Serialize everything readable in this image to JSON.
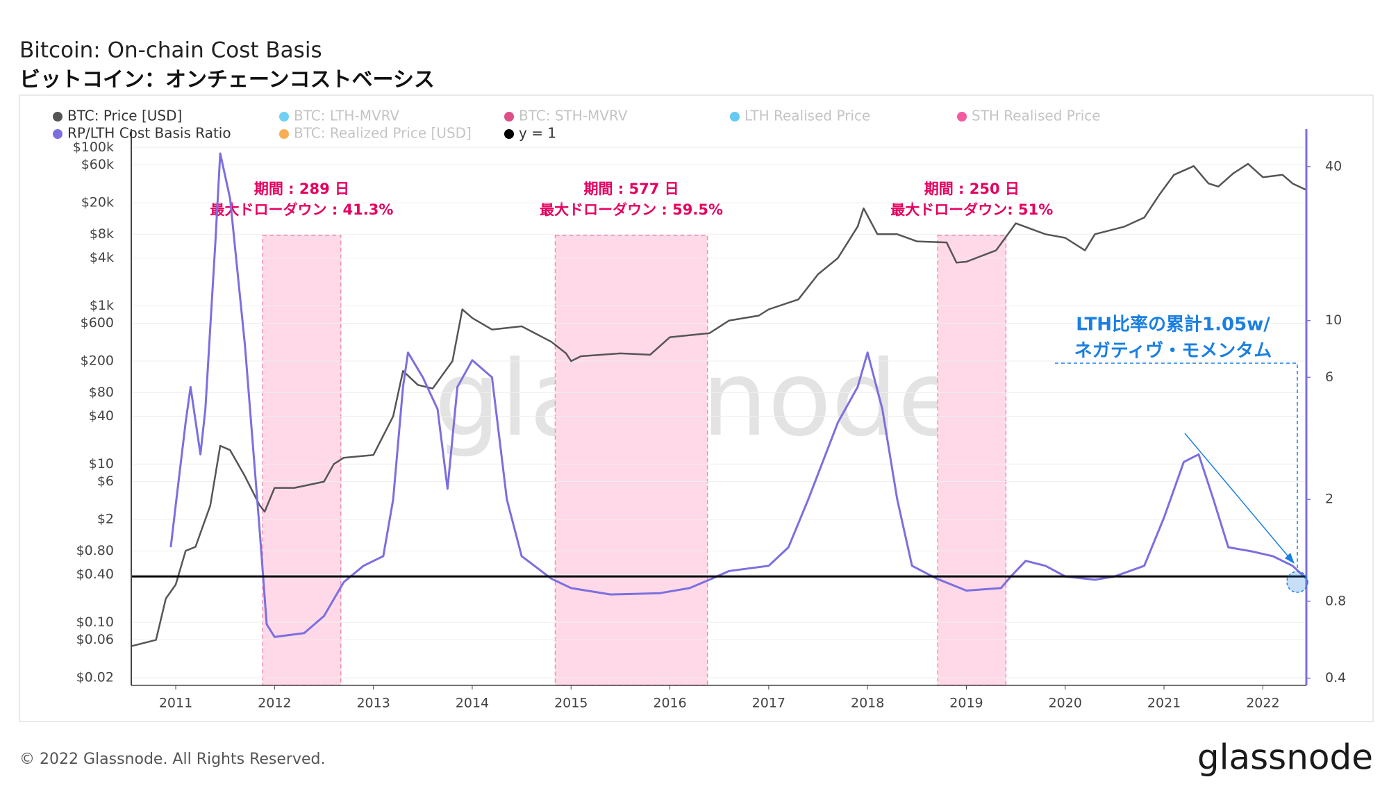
{
  "chart_data": {
    "type": "line",
    "title": "Bitcoin: On-chain Cost Basis",
    "subtitle": "ビットコイン：オンチェーンコストベーシス",
    "footer": "© 2022 Glassnode. All Rights Reserved.",
    "logo": "glassnode",
    "watermark": "glassnode",
    "xlim": [
      2010.55,
      2022.44
    ],
    "xticks": [
      2011,
      2012,
      2013,
      2014,
      2015,
      2016,
      2017,
      2018,
      2019,
      2020,
      2021,
      2022
    ],
    "ylog": true,
    "ylim": [
      0.016,
      170000
    ],
    "yticks": [
      {
        "value": 100000,
        "label": "$100k"
      },
      {
        "value": 60000,
        "label": "$60k"
      },
      {
        "value": 20000,
        "label": "$20k"
      },
      {
        "value": 8000,
        "label": "$8k"
      },
      {
        "value": 4000,
        "label": "$4k"
      },
      {
        "value": 1000,
        "label": "$1k"
      },
      {
        "value": 600,
        "label": "$600"
      },
      {
        "value": 200,
        "label": "$200"
      },
      {
        "value": 80,
        "label": "$80"
      },
      {
        "value": 40,
        "label": "$40"
      },
      {
        "value": 10,
        "label": "$10"
      },
      {
        "value": 6,
        "label": "$6"
      },
      {
        "value": 2,
        "label": "$2"
      },
      {
        "value": 0.8,
        "label": "$0.80"
      },
      {
        "value": 0.4,
        "label": "$0.40"
      },
      {
        "value": 0.1,
        "label": "$0.10"
      },
      {
        "value": 0.06,
        "label": "$0.06"
      },
      {
        "value": 0.02,
        "label": "$0.02"
      }
    ],
    "y2log": true,
    "y2lim": [
      0.375,
      56
    ],
    "y2ticks": [
      0.4,
      0.8,
      2,
      6,
      10,
      40
    ],
    "grid": true,
    "series": [
      {
        "name": "BTC: Price [USD]",
        "color": "#555555",
        "enabled": true,
        "axis": "y",
        "x": [
          2010.55,
          2010.8,
          2010.9,
          2011.0,
          2011.1,
          2011.2,
          2011.35,
          2011.45,
          2011.55,
          2011.7,
          2011.85,
          2011.9,
          2012.0,
          2012.2,
          2012.5,
          2012.6,
          2012.7,
          2013.0,
          2013.2,
          2013.3,
          2013.45,
          2013.6,
          2013.8,
          2013.9,
          2014.0,
          2014.2,
          2014.5,
          2014.8,
          2014.95,
          2015.0,
          2015.1,
          2015.5,
          2015.8,
          2016.0,
          2016.4,
          2016.6,
          2016.9,
          2017.0,
          2017.3,
          2017.5,
          2017.7,
          2017.9,
          2017.96,
          2018.1,
          2018.3,
          2018.5,
          2018.8,
          2018.9,
          2019.0,
          2019.3,
          2019.45,
          2019.5,
          2019.8,
          2020.0,
          2020.2,
          2020.3,
          2020.6,
          2020.8,
          2020.95,
          2021.1,
          2021.3,
          2021.45,
          2021.55,
          2021.7,
          2021.85,
          2022.0,
          2022.2,
          2022.3,
          2022.44
        ],
        "values": [
          0.05,
          0.06,
          0.2,
          0.3,
          0.8,
          0.9,
          3,
          17,
          15,
          7,
          3,
          2.5,
          5,
          5,
          6,
          10,
          12,
          13,
          40,
          150,
          100,
          90,
          200,
          900,
          700,
          500,
          550,
          350,
          250,
          200,
          230,
          250,
          240,
          400,
          450,
          650,
          750,
          900,
          1200,
          2500,
          4000,
          10000,
          17000,
          8000,
          8000,
          6500,
          6300,
          3500,
          3600,
          5000,
          9000,
          11000,
          8000,
          7200,
          5000,
          8000,
          10000,
          13000,
          25000,
          45000,
          58000,
          35000,
          32000,
          47000,
          62000,
          42000,
          45000,
          35000,
          29000
        ]
      },
      {
        "name": "BTC: LTH-MVRV",
        "color": "#3cc0f0",
        "enabled": false
      },
      {
        "name": "BTC: STH-MVRV",
        "color": "#d0155f",
        "enabled": false
      },
      {
        "name": "LTH Realised Price",
        "color": "#2fb8f0",
        "enabled": false
      },
      {
        "name": "STH Realised Price",
        "color": "#f0237f",
        "enabled": false
      },
      {
        "name": "RP/LTH Cost Basis Ratio",
        "color": "#7b6fe0",
        "enabled": true,
        "axis": "y2",
        "x": [
          2010.95,
          2011.0,
          2011.1,
          2011.15,
          2011.25,
          2011.3,
          2011.4,
          2011.45,
          2011.55,
          2011.7,
          2011.85,
          2011.92,
          2012.0,
          2012.3,
          2012.5,
          2012.7,
          2012.9,
          2013.1,
          2013.2,
          2013.3,
          2013.35,
          2013.5,
          2013.65,
          2013.75,
          2013.85,
          2014.0,
          2014.2,
          2014.35,
          2014.5,
          2014.8,
          2015.0,
          2015.4,
          2015.9,
          2016.2,
          2016.4,
          2016.6,
          2017.0,
          2017.2,
          2017.4,
          2017.7,
          2017.9,
          2018.0,
          2018.15,
          2018.3,
          2018.45,
          2018.7,
          2019.0,
          2019.35,
          2019.45,
          2019.6,
          2019.8,
          2020.0,
          2020.3,
          2020.5,
          2020.8,
          2021.0,
          2021.2,
          2021.35,
          2021.5,
          2021.65,
          2021.9,
          2022.1,
          2022.3,
          2022.44
        ],
        "values": [
          1.3,
          1.9,
          4.0,
          5.5,
          3,
          4.5,
          20,
          45,
          30,
          8,
          1.5,
          0.65,
          0.58,
          0.6,
          0.7,
          0.95,
          1.1,
          1.2,
          2,
          5.5,
          7.5,
          6,
          4.5,
          2.2,
          5.5,
          7,
          6,
          2,
          1.2,
          0.98,
          0.9,
          0.85,
          0.86,
          0.9,
          0.97,
          1.05,
          1.1,
          1.3,
          2,
          4,
          5.5,
          7.5,
          4.5,
          2,
          1.1,
          0.98,
          0.88,
          0.9,
          1.0,
          1.15,
          1.1,
          1.0,
          0.97,
          1.0,
          1.1,
          1.7,
          2.8,
          3.0,
          2.0,
          1.3,
          1.25,
          1.2,
          1.1,
          0.98
        ]
      },
      {
        "name": "BTC: Realized Price [USD]",
        "color": "#f7931a",
        "enabled": false
      },
      {
        "name": "y = 1",
        "color": "#000000",
        "enabled": true,
        "axis": "y2",
        "x": [
          2010.55,
          2022.44
        ],
        "values": [
          1,
          1
        ]
      }
    ],
    "periods": [
      {
        "x0": 2011.88,
        "x1": 2012.67,
        "labels": [
          "期間 : 289 日",
          "最大ドローダウン : 41.3%"
        ]
      },
      {
        "x0": 2014.84,
        "x1": 2016.38,
        "labels": [
          "期間 : 577 日",
          "最大ドローダウン : 59.5%"
        ]
      },
      {
        "x0": 2018.71,
        "x1": 2019.4,
        "labels": [
          "期間 : 250 日",
          "最大ドローダウン: 51%"
        ]
      }
    ],
    "annotation": [
      "LTH比率の累計1.05w/",
      "ネガティヴ・モメンタム"
    ]
  }
}
